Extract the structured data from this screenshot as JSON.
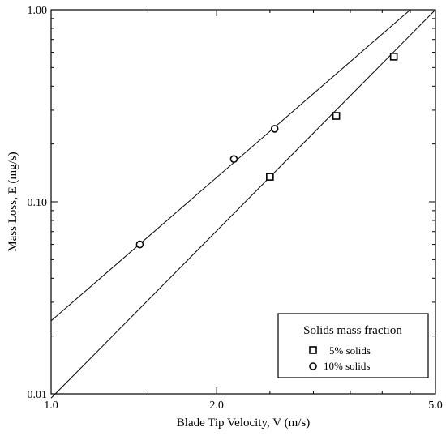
{
  "chart_data": {
    "type": "scatter",
    "xlabel": "Blade Tip Velocity, V  (m/s)",
    "ylabel": "Mass Loss, E (mg/s)",
    "xscale": "log",
    "yscale": "log",
    "xlim": [
      1.0,
      5.0
    ],
    "ylim": [
      0.01,
      1.0
    ],
    "xticks": [
      1.0,
      2.0,
      5.0
    ],
    "xtick_labels": [
      "1.0",
      "2.0",
      "5.0"
    ],
    "yticks": [
      0.01,
      0.1,
      1.0
    ],
    "ytick_labels": [
      "0.01",
      "0.10",
      "1.00"
    ],
    "grid": false,
    "legend": {
      "title": "Solids mass fraction",
      "position": "bottom-right"
    },
    "series": [
      {
        "name": "5% solids",
        "marker": "square",
        "points": [
          {
            "x": 2.5,
            "y": 0.135
          },
          {
            "x": 3.3,
            "y": 0.28
          },
          {
            "x": 4.2,
            "y": 0.57
          }
        ],
        "fit_line": {
          "x": [
            1.0,
            5.0
          ],
          "y": [
            0.0095,
            1.0
          ]
        }
      },
      {
        "name": "10% solids",
        "marker": "circle",
        "points": [
          {
            "x": 1.45,
            "y": 0.06
          },
          {
            "x": 2.15,
            "y": 0.167
          },
          {
            "x": 2.55,
            "y": 0.24
          }
        ],
        "fit_line": {
          "x": [
            1.0,
            4.5
          ],
          "y": [
            0.024,
            1.0
          ]
        }
      }
    ]
  }
}
